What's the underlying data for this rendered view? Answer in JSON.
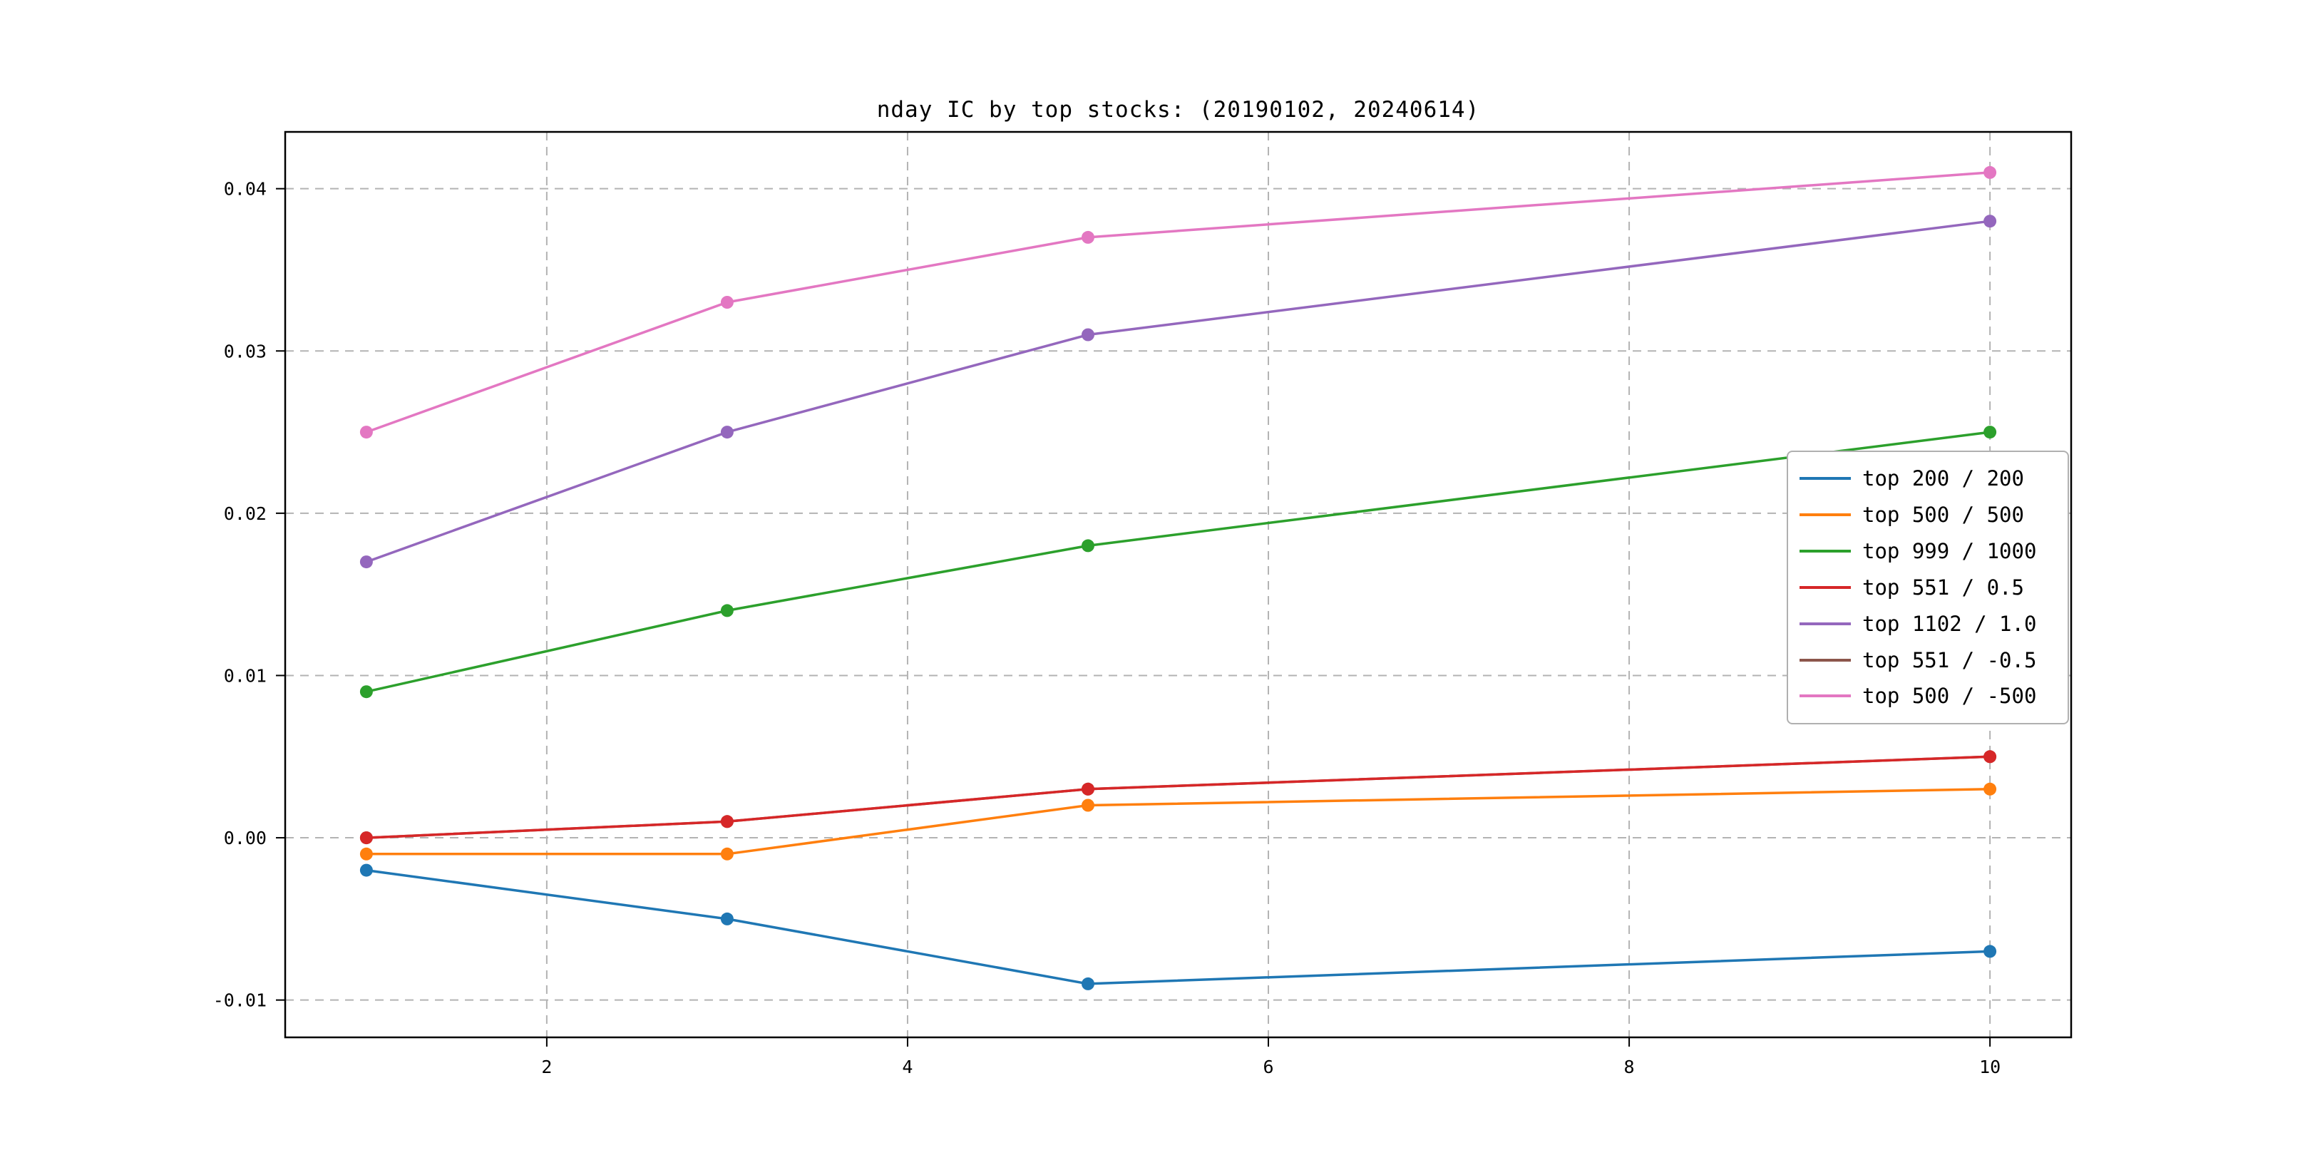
{
  "chart_data": {
    "type": "line",
    "title": "nday IC by top stocks: (20190102, 20240614)",
    "x": [
      1,
      3,
      5,
      10
    ],
    "series": [
      {
        "name": "top 200 / 200",
        "color": "#1f77b4",
        "values": [
          -0.002,
          -0.005,
          -0.009,
          -0.007
        ]
      },
      {
        "name": "top 500 / 500",
        "color": "#ff7f0e",
        "values": [
          -0.001,
          -0.001,
          0.002,
          0.003
        ]
      },
      {
        "name": "top 999 / 1000",
        "color": "#2ca02c",
        "values": [
          0.009,
          0.014,
          0.018,
          0.025
        ]
      },
      {
        "name": "top 551 / 0.5",
        "color": "#d62728",
        "values": [
          0.0,
          0.001,
          0.003,
          0.005
        ]
      },
      {
        "name": "top 1102 / 1.0",
        "color": "#9467bd",
        "values": [
          0.017,
          0.025,
          0.031,
          0.038
        ]
      },
      {
        "name": "top 551 / -0.5",
        "color": "#8c564b",
        "values": [
          0.0,
          0.001,
          0.003,
          0.005
        ]
      },
      {
        "name": "top 500 / -500",
        "color": "#e377c2",
        "values": [
          0.025,
          0.033,
          0.037,
          0.041
        ]
      }
    ],
    "xticks": [
      2,
      4,
      6,
      8,
      10
    ],
    "xtick_labels": [
      "2",
      "4",
      "6",
      "8",
      "10"
    ],
    "yticks": [
      -0.01,
      0.0,
      0.01,
      0.02,
      0.03,
      0.04
    ],
    "ytick_labels": [
      "-0.01",
      "0.00",
      "0.01",
      "0.02",
      "0.03",
      "0.04"
    ],
    "xlim": [
      0.55,
      10.45
    ],
    "ylim": [
      -0.0123,
      0.0435
    ],
    "grid": true,
    "legend_position": "center right",
    "marker": "o"
  }
}
